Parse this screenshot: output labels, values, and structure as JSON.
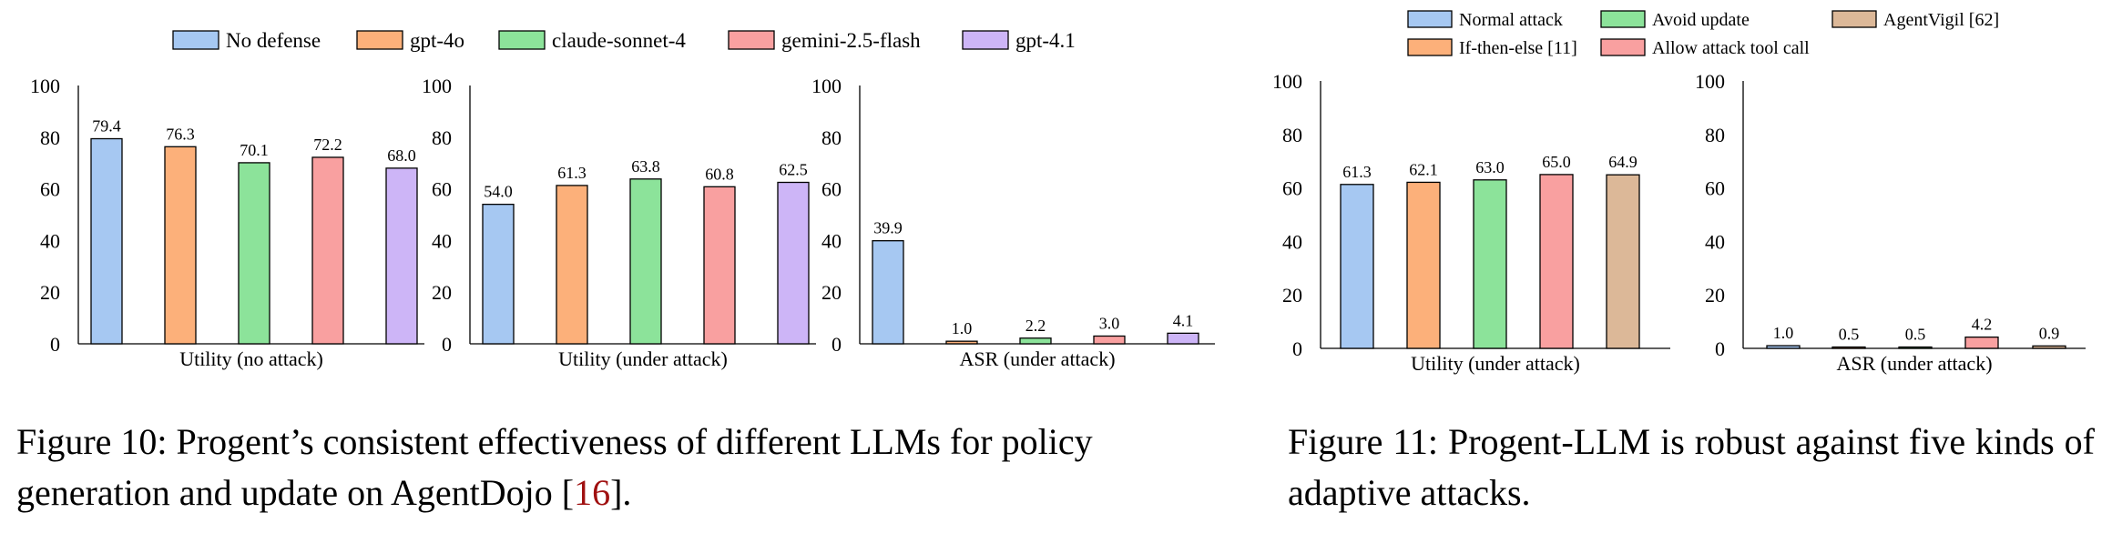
{
  "colors": {
    "blue": "#a6c8f2",
    "orange": "#fcb07a",
    "green": "#8ce39a",
    "red": "#f9a0a0",
    "purple": "#cdb5f7",
    "tan": "#dcb898"
  },
  "figure10": {
    "legend": [
      {
        "label": "No defense",
        "color": "#a6c8f2"
      },
      {
        "label": "gpt-4o",
        "color": "#fcb07a"
      },
      {
        "label": "claude-sonnet-4",
        "color": "#8ce39a"
      },
      {
        "label": "gemini-2.5-flash",
        "color": "#f9a0a0"
      },
      {
        "label": "gpt-4.1",
        "color": "#cdb5f7"
      }
    ],
    "caption_text": "Figure 10: Progent’s consistent effectiveness of different LLMs for policy generation and update on AgentDojo [",
    "caption_cite": "16",
    "caption_end": "]."
  },
  "figure11": {
    "legend": [
      {
        "label": "Normal attack",
        "color": "#a6c8f2"
      },
      {
        "label": "Avoid update",
        "color": "#8ce39a"
      },
      {
        "label": "AgentVigil [62]",
        "color": "#dcb898"
      },
      {
        "label": "If-then-else [11]",
        "color": "#fcb07a"
      },
      {
        "label": "Allow attack tool call",
        "color": "#f9a0a0"
      }
    ],
    "caption_text": "Figure 11: Progent-LLM is robust against five kinds of adaptive attacks."
  },
  "chart_data": [
    {
      "type": "bar",
      "figure": "Figure 10",
      "xlabel": "Utility (no attack)",
      "ylim": [
        0,
        100
      ],
      "yticks": [
        0,
        20,
        40,
        60,
        80,
        100
      ],
      "series": [
        {
          "name": "No defense",
          "values": [
            79.4
          ]
        },
        {
          "name": "gpt-4o",
          "values": [
            76.3
          ]
        },
        {
          "name": "claude-sonnet-4",
          "values": [
            70.1
          ]
        },
        {
          "name": "gemini-2.5-flash",
          "values": [
            72.2
          ]
        },
        {
          "name": "gpt-4.1",
          "values": [
            68.0
          ]
        }
      ]
    },
    {
      "type": "bar",
      "figure": "Figure 10",
      "xlabel": "Utility (under attack)",
      "ylim": [
        0,
        100
      ],
      "yticks": [
        0,
        20,
        40,
        60,
        80,
        100
      ],
      "series": [
        {
          "name": "No defense",
          "values": [
            54.0
          ]
        },
        {
          "name": "gpt-4o",
          "values": [
            61.3
          ]
        },
        {
          "name": "claude-sonnet-4",
          "values": [
            63.8
          ]
        },
        {
          "name": "gemini-2.5-flash",
          "values": [
            60.8
          ]
        },
        {
          "name": "gpt-4.1",
          "values": [
            62.5
          ]
        }
      ]
    },
    {
      "type": "bar",
      "figure": "Figure 10",
      "xlabel": "ASR (under attack)",
      "ylim": [
        0,
        100
      ],
      "yticks": [
        0,
        20,
        40,
        60,
        80,
        100
      ],
      "series": [
        {
          "name": "No defense",
          "values": [
            39.9
          ]
        },
        {
          "name": "gpt-4o",
          "values": [
            1.0
          ]
        },
        {
          "name": "claude-sonnet-4",
          "values": [
            2.2
          ]
        },
        {
          "name": "gemini-2.5-flash",
          "values": [
            3.0
          ]
        },
        {
          "name": "gpt-4.1",
          "values": [
            4.1
          ]
        }
      ]
    },
    {
      "type": "bar",
      "figure": "Figure 11",
      "xlabel": "Utility (under attack)",
      "ylim": [
        0,
        100
      ],
      "yticks": [
        0,
        20,
        40,
        60,
        80,
        100
      ],
      "series": [
        {
          "name": "Normal attack",
          "values": [
            61.3
          ]
        },
        {
          "name": "If-then-else [11]",
          "values": [
            62.1
          ]
        },
        {
          "name": "Avoid update",
          "values": [
            63.0
          ]
        },
        {
          "name": "Allow attack tool call",
          "values": [
            65.0
          ]
        },
        {
          "name": "AgentVigil [62]",
          "values": [
            64.9
          ]
        }
      ]
    },
    {
      "type": "bar",
      "figure": "Figure 11",
      "xlabel": "ASR (under attack)",
      "ylim": [
        0,
        100
      ],
      "yticks": [
        0,
        20,
        40,
        60,
        80,
        100
      ],
      "series": [
        {
          "name": "Normal attack",
          "values": [
            1.0
          ]
        },
        {
          "name": "If-then-else [11]",
          "values": [
            0.5
          ]
        },
        {
          "name": "Avoid update",
          "values": [
            0.5
          ]
        },
        {
          "name": "Allow attack tool call",
          "values": [
            4.2
          ]
        },
        {
          "name": "AgentVigil [62]",
          "values": [
            0.9
          ]
        }
      ]
    }
  ]
}
